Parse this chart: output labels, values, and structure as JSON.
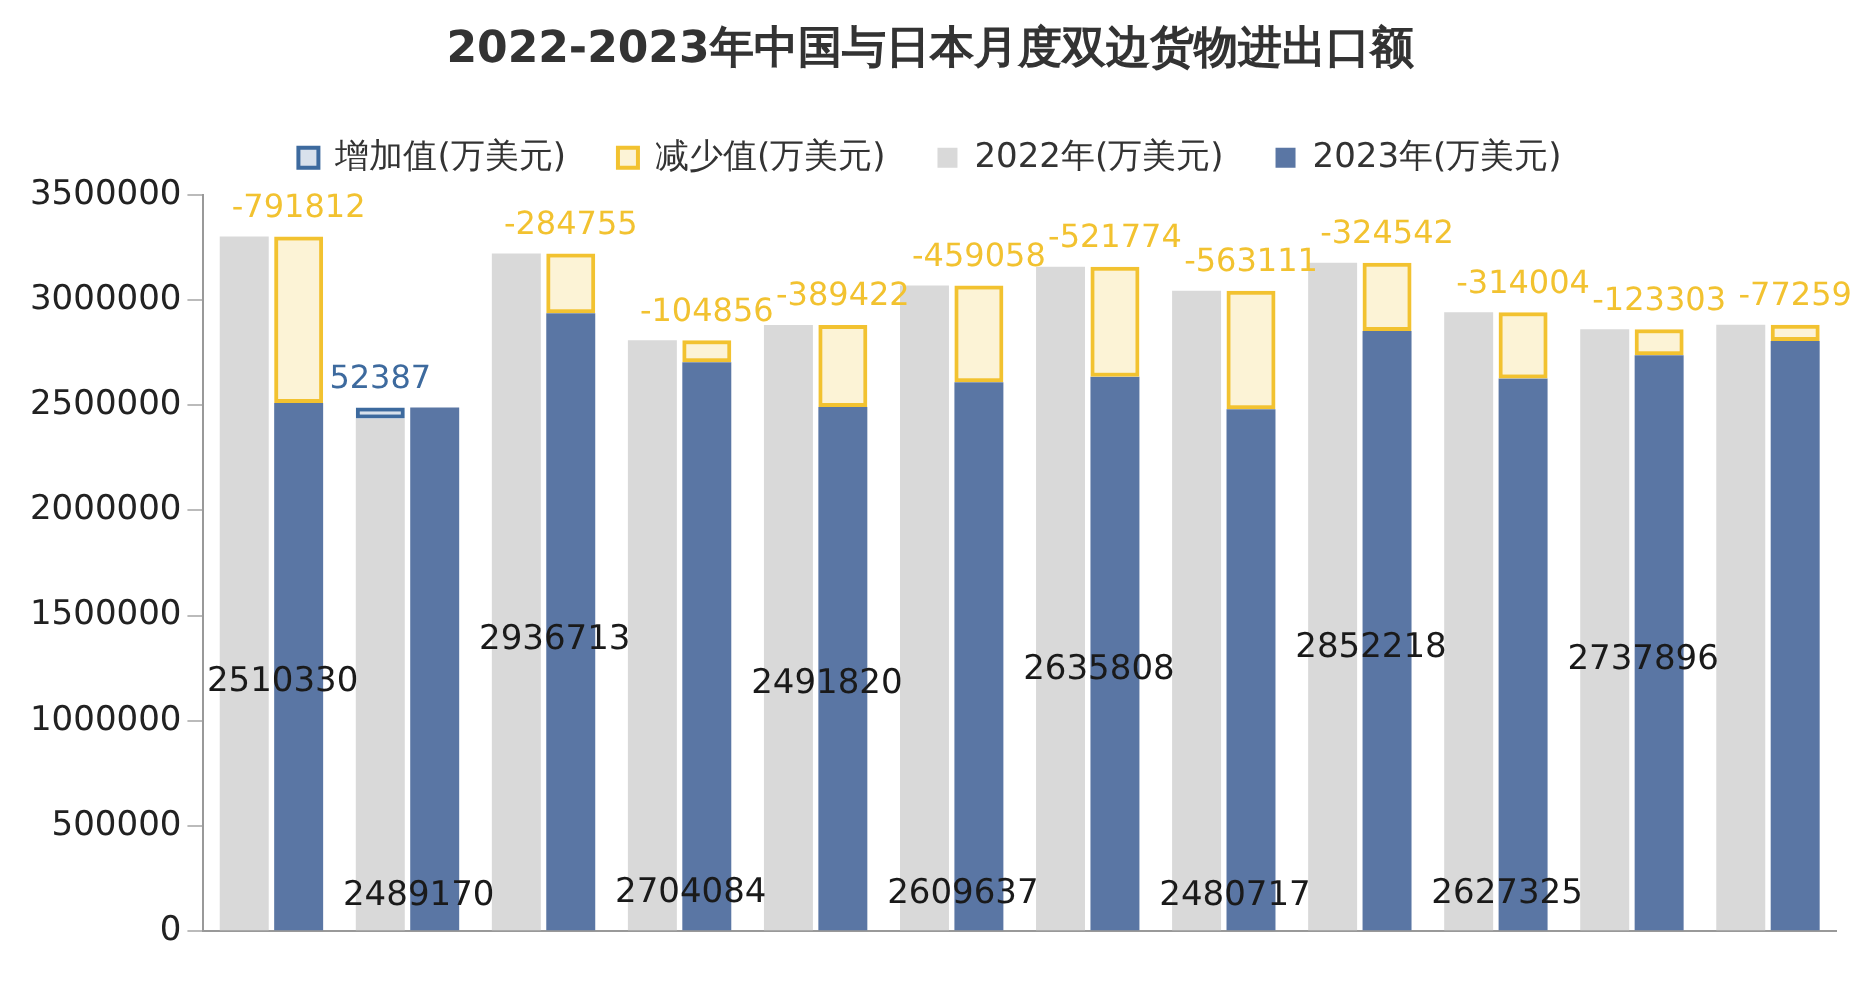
{
  "chart_data": {
    "type": "bar",
    "title": "2022-2023年中国与日本月度双边货物进出口额",
    "categories": [
      null,
      null,
      null,
      null,
      null,
      null,
      null,
      null,
      null,
      null,
      null,
      null
    ],
    "series": [
      {
        "name": "增加值(万美元)",
        "color": "#3d6a9e",
        "base": [
          null,
          2436783,
          null,
          null,
          null,
          null,
          null,
          null,
          null,
          null,
          null,
          null
        ],
        "values": [
          null,
          52387,
          null,
          null,
          null,
          null,
          null,
          null,
          null,
          null,
          null,
          null
        ],
        "value_labels": [
          null,
          "52387",
          null,
          null,
          null,
          null,
          null,
          null,
          null,
          null,
          null,
          null
        ]
      },
      {
        "name": "减少值(万美元)",
        "color": "#f2c230",
        "base": [
          3302142,
          null,
          3221468,
          2808940,
          2881242,
          3068695,
          3157582,
          3043828,
          3176760,
          2941329,
          2861199,
          2882259
        ],
        "values": [
          -791812,
          null,
          -284755,
          -104856,
          -389422,
          -459058,
          -521774,
          -563111,
          -324542,
          -314004,
          -123303,
          -77259
        ],
        "value_labels": [
          "-791812",
          null,
          "-284755",
          "-104856",
          "-389422",
          "-459058",
          "-521774",
          "-563111",
          "-324542",
          "-314004",
          "-123303",
          "-77259"
        ]
      },
      {
        "name": "2022年(万美元)",
        "color": "#d9d9d9",
        "values": [
          3302142,
          2436783,
          3221468,
          2808940,
          2881242,
          3068695,
          3157582,
          3043828,
          3176760,
          2941329,
          2861199,
          2882259
        ]
      },
      {
        "name": "2023年(万美元)",
        "color": "#5a76a4",
        "values": [
          2510330,
          2489170,
          2936713,
          2704084,
          2491820,
          2609637,
          2635808,
          2480717,
          2852218,
          2627325,
          2737896,
          2805000
        ],
        "value_labels": [
          "2510330",
          "2489170",
          "2936713",
          "2704084",
          "2491820",
          "2609637",
          "2635808",
          "2480717",
          "2852218",
          "2627325",
          "2737896",
          null
        ]
      }
    ],
    "ylim": [
      0,
      3500000
    ],
    "yticks": [
      0,
      500000,
      1000000,
      1500000,
      2000000,
      2500000,
      3000000,
      3500000
    ],
    "grid": false,
    "legend": "top"
  }
}
